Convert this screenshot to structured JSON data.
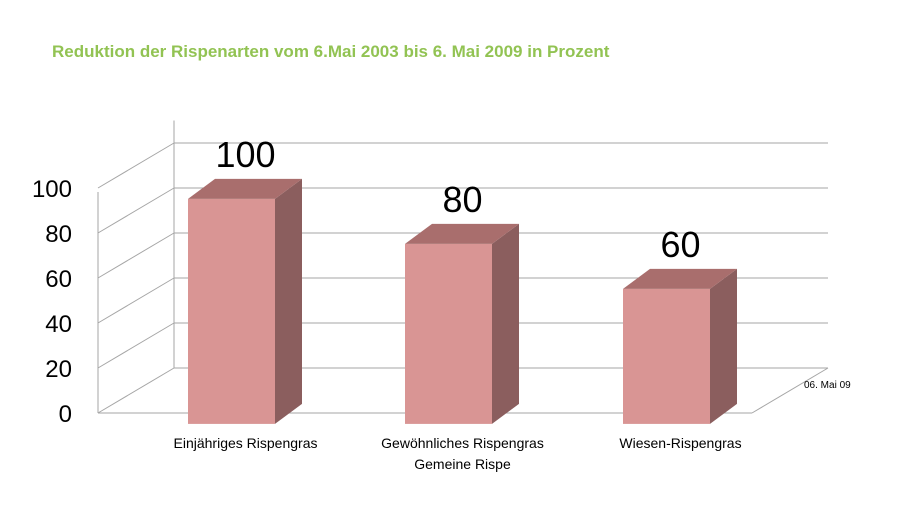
{
  "chart_data": {
    "type": "bar",
    "title": "Reduktion der Rispenarten vom 6.Mai 2003 bis 6. Mai 2009 in Prozent",
    "categories": [
      [
        "Einjähriges Rispengras"
      ],
      [
        "Gewöhnliches Rispengras",
        "Gemeine Rispe"
      ],
      [
        "Wiesen-Rispengras"
      ]
    ],
    "series": [
      {
        "name": "06. Mai 09",
        "values": [
          100,
          80,
          60
        ]
      }
    ],
    "data_labels": [
      "100",
      "80",
      "60"
    ],
    "ylim": [
      0,
      100
    ],
    "yticks": [
      0,
      20,
      40,
      60,
      80,
      100
    ],
    "xlabel": "",
    "ylabel": "",
    "grid": true,
    "three_d": true,
    "legend_position": "right",
    "colors": {
      "bar_front": "#d99594",
      "bar_side": "#8b5e5e",
      "bar_top": "#a96e6d",
      "grid": "#a6a6a6",
      "title": "#92c353"
    }
  }
}
